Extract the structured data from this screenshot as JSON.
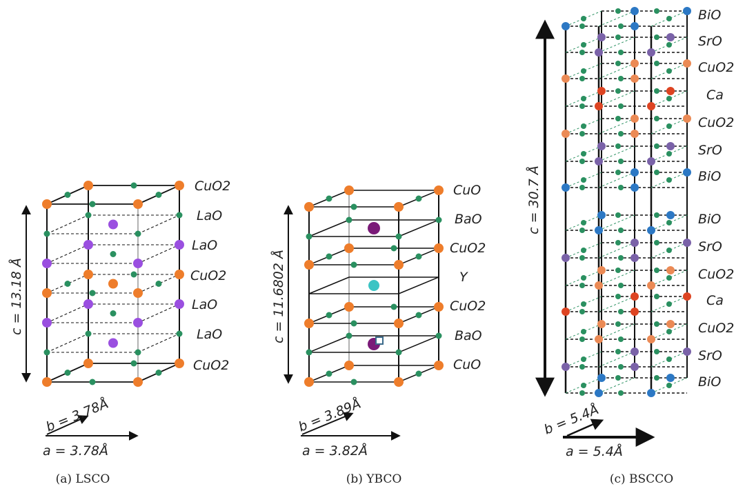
{
  "colors": {
    "cu": "#ee7d2b",
    "la": "#9a4fe0",
    "oxygen": "#2a9060",
    "ba": "#7a1a78",
    "y": "#3bc4c4",
    "bi": "#2c78c4",
    "sr": "#7a62a8",
    "cu_light": "#eb8a55",
    "ca": "#dd4422"
  },
  "panels": {
    "lsco": {
      "layers": [
        "CuO2",
        "LaO",
        "LaO",
        "CuO2",
        "LaO",
        "LaO",
        "CuO2"
      ],
      "c_label": "c = 13.18 Å",
      "b_label": "b = 3.78Å",
      "a_label": "a = 3.78Å",
      "caption": "(a) LSCO"
    },
    "ybco": {
      "layers": [
        "CuO",
        "BaO",
        "CuO2",
        "Y",
        "CuO2",
        "BaO",
        "CuO"
      ],
      "c_label": "c = 11.6802 Å",
      "b_label": "b = 3.89Å",
      "a_label": "a = 3.82Å",
      "caption": "(b) YBCO"
    },
    "bscco": {
      "layers": [
        "BiO",
        "SrO",
        "CuO2",
        "Ca",
        "CuO2",
        "SrO",
        "BiO",
        "BiO",
        "SrO",
        "CuO2",
        "Ca",
        "CuO2",
        "SrO",
        "BiO"
      ],
      "c_label": "c = 30.7 Å",
      "b_label": "b = 5.4Å",
      "a_label": "a = 5.4Å",
      "caption": "(c) BSCCO"
    }
  }
}
